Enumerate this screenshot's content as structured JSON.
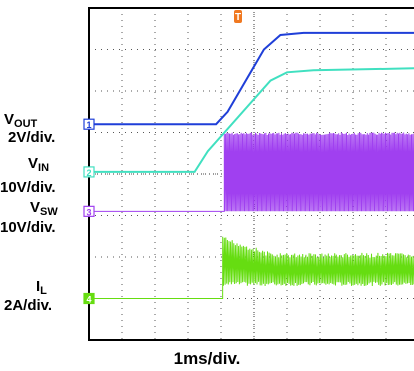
{
  "chart_data": {
    "type": "line",
    "xlabel": "1ms/div.",
    "x_unit": "ms",
    "x_divisions": [
      0,
      10
    ],
    "y_divisions": [
      0,
      8
    ],
    "trigger_marker": "T",
    "channels": [
      {
        "id": 1,
        "marker": "1",
        "signal": "V",
        "subscript": "OUT",
        "scale": "2V/div.",
        "color": "#1f3fd8",
        "offset_div": 5.2,
        "x_ms": [
          0,
          3.85,
          4.2,
          5.3,
          5.8,
          6.5,
          10
        ],
        "y_div": [
          0,
          0,
          0.3,
          1.8,
          2.15,
          2.2,
          2.2
        ]
      },
      {
        "id": 2,
        "marker": "2",
        "signal": "V",
        "subscript": "IN",
        "scale": "10V/div.",
        "color": "#40e0c0",
        "offset_div": 4.05,
        "x_ms": [
          0,
          3.2,
          3.6,
          5.5,
          6.0,
          6.8,
          10
        ],
        "y_div": [
          0,
          0,
          0.5,
          2.2,
          2.4,
          2.45,
          2.5
        ]
      },
      {
        "id": 3,
        "marker": "3",
        "signal": "V",
        "subscript": "SW",
        "scale": "10V/div.",
        "color": "#a040f0",
        "offset_div": 3.1,
        "switching_start_ms": 4.1,
        "switching_low_div": 0.0,
        "switching_high_div": 1.9
      },
      {
        "id": 4,
        "marker": "4",
        "signal": "I",
        "subscript": "L",
        "scale": "2A/div.",
        "color": "#66dd11",
        "offset_div": 1.0,
        "step_ms": 4.05,
        "ripple_low_div": 0.3,
        "ripple_high_div": 1.1,
        "peak_div": 1.5
      }
    ]
  }
}
